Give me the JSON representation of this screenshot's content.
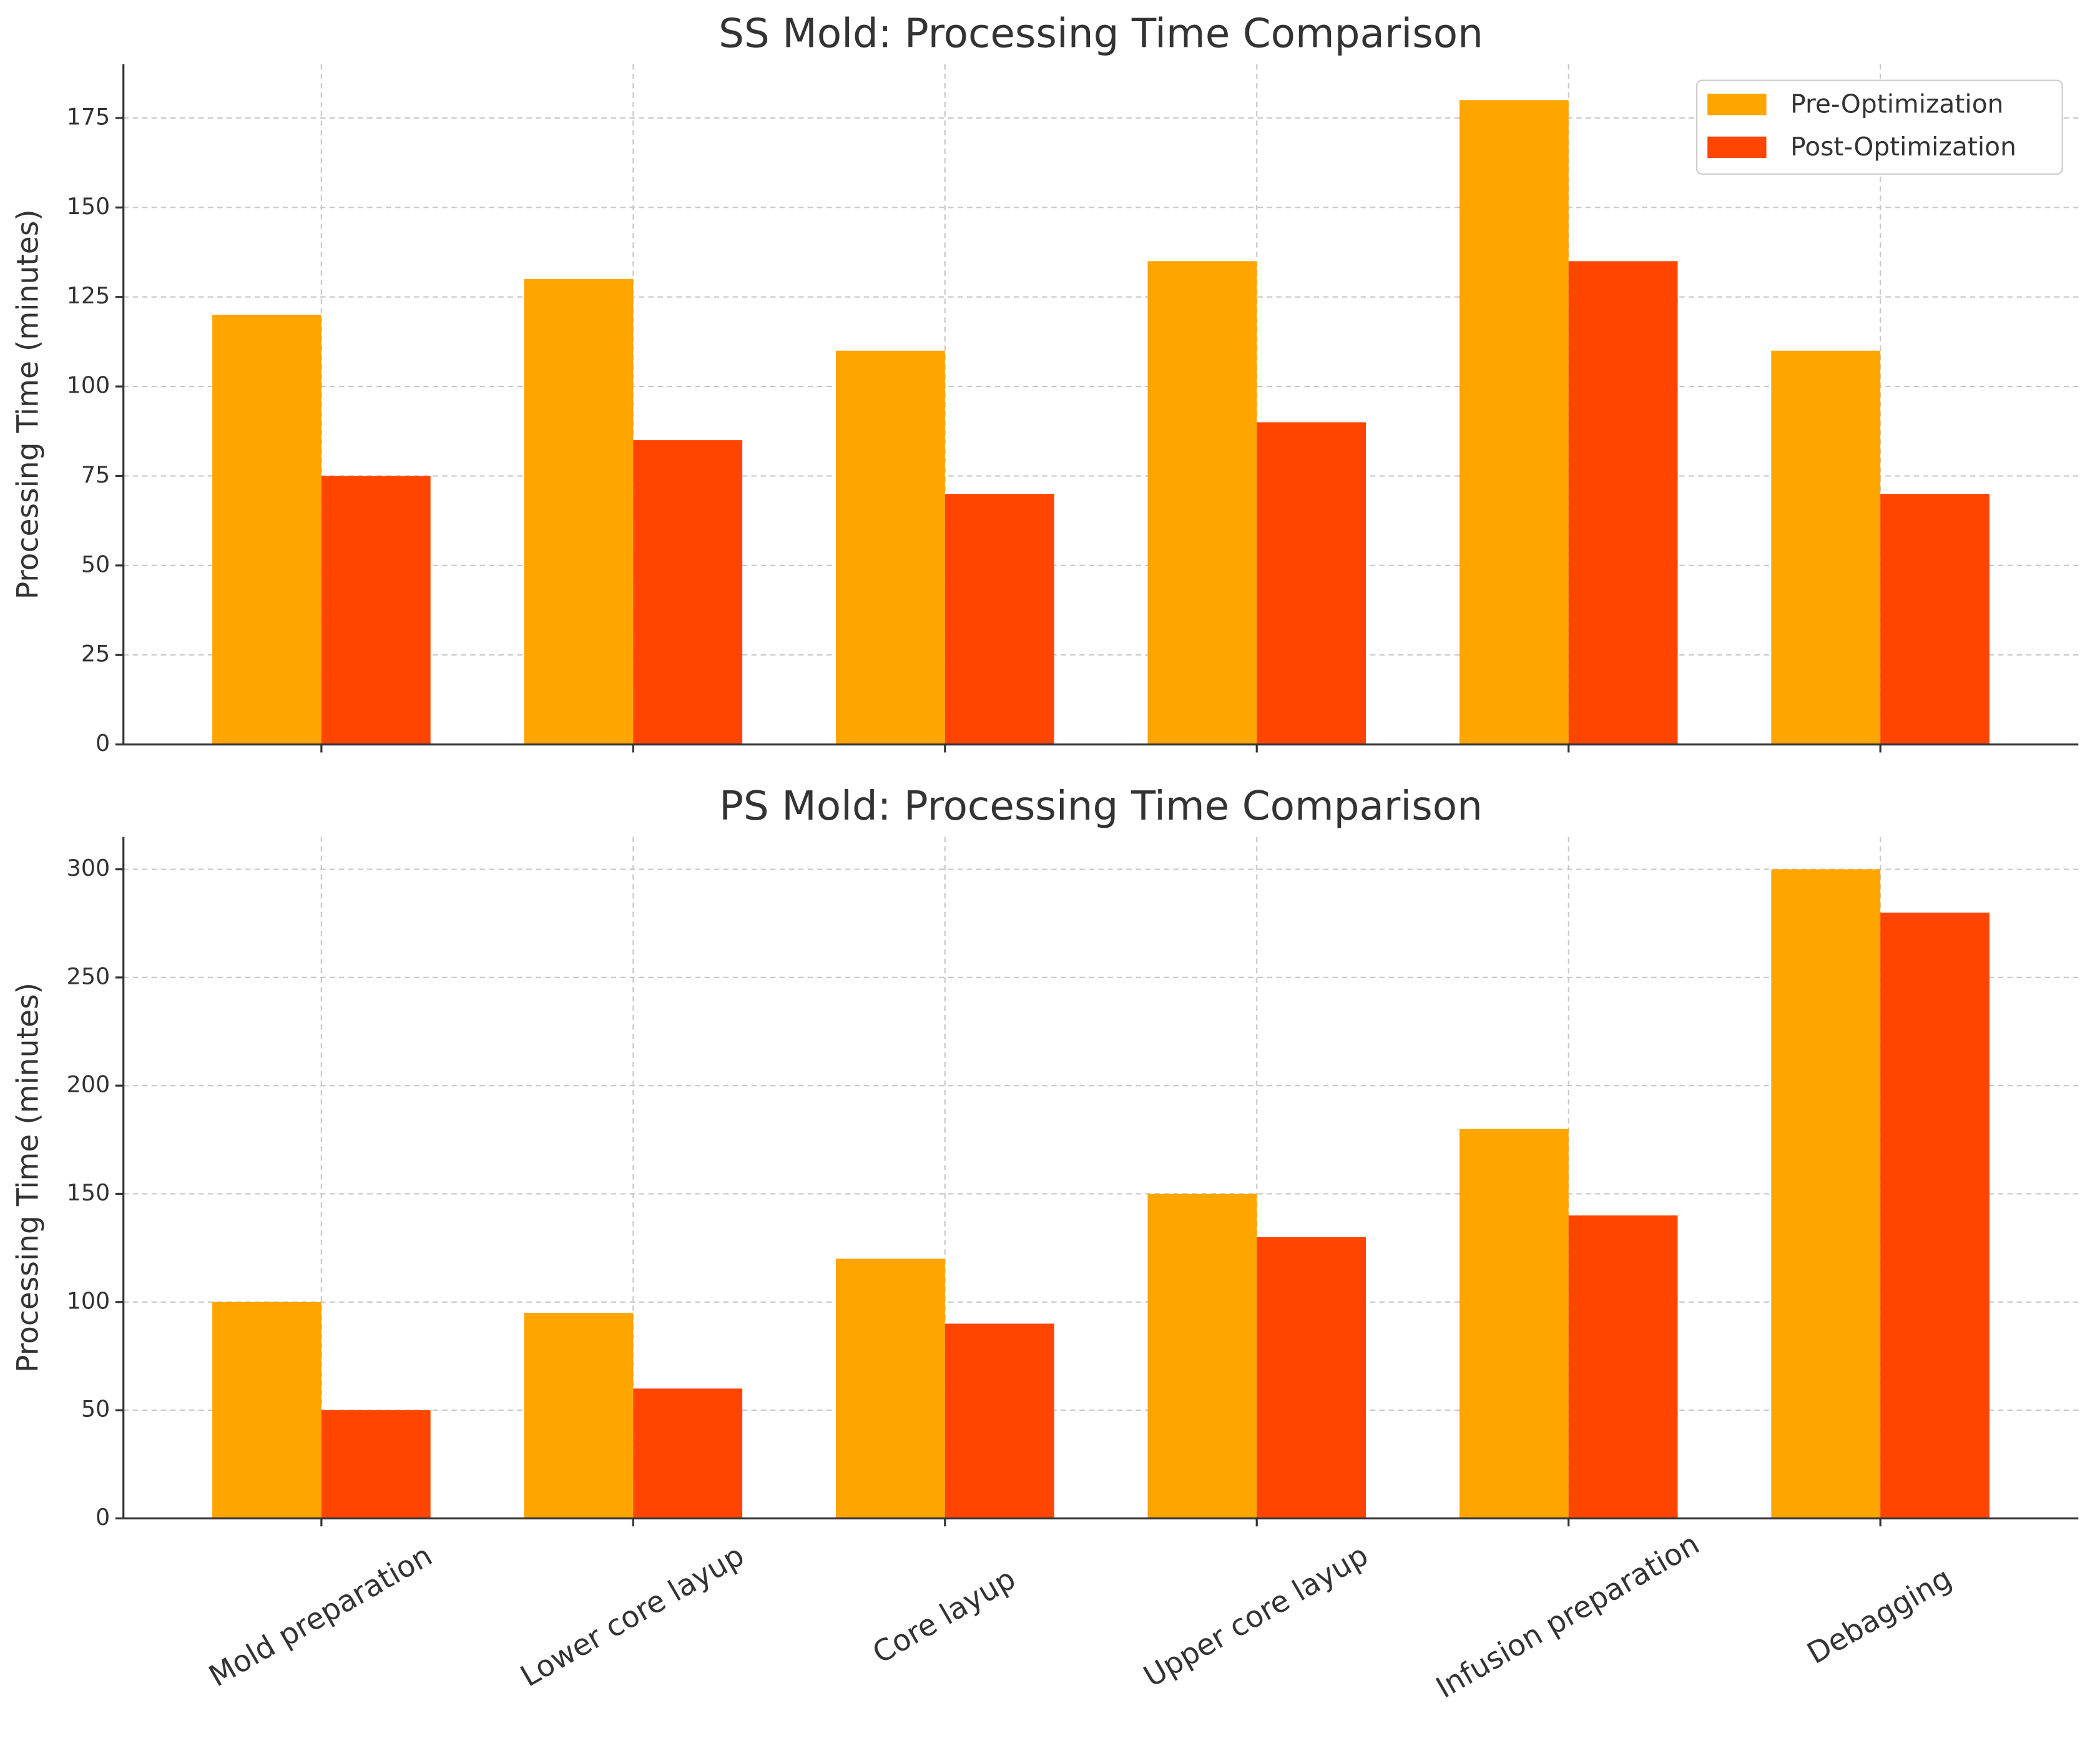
{
  "chart_data": [
    {
      "type": "bar",
      "title": "SS Mold: Processing Time Comparison",
      "y_label": "Processing Time (minutes)",
      "categories": [
        null,
        null,
        null,
        null,
        null,
        null
      ],
      "series": [
        {
          "name": "Pre-Optimization",
          "color": "#ffa500",
          "values": [
            120,
            130,
            110,
            135,
            180,
            110
          ]
        },
        {
          "name": "Post-Optimization",
          "color": "#ff4500",
          "values": [
            75,
            85,
            70,
            90,
            135,
            70
          ]
        }
      ],
      "ylim": [
        0,
        190
      ],
      "yticks": [
        0,
        25,
        50,
        75,
        100,
        125,
        150,
        175
      ],
      "grid": true,
      "legend": "upper right"
    },
    {
      "type": "bar",
      "title": "PS Mold: Processing Time Comparison",
      "y_label": "Processing Time (minutes)",
      "categories": [
        "Mold preparation",
        "Lower core layup",
        "Core layup",
        "Upper core layup",
        "Infusion preparation",
        "Debagging"
      ],
      "series": [
        {
          "color": "#ffa500",
          "values": [
            100,
            95,
            120,
            150,
            180,
            300
          ]
        },
        {
          "color": "#ff4500",
          "values": [
            50,
            60,
            90,
            130,
            140,
            280
          ]
        }
      ],
      "ylim": [
        0,
        315
      ],
      "yticks": [
        0,
        50,
        100,
        150,
        200,
        250,
        300
      ],
      "grid": true
    }
  ]
}
